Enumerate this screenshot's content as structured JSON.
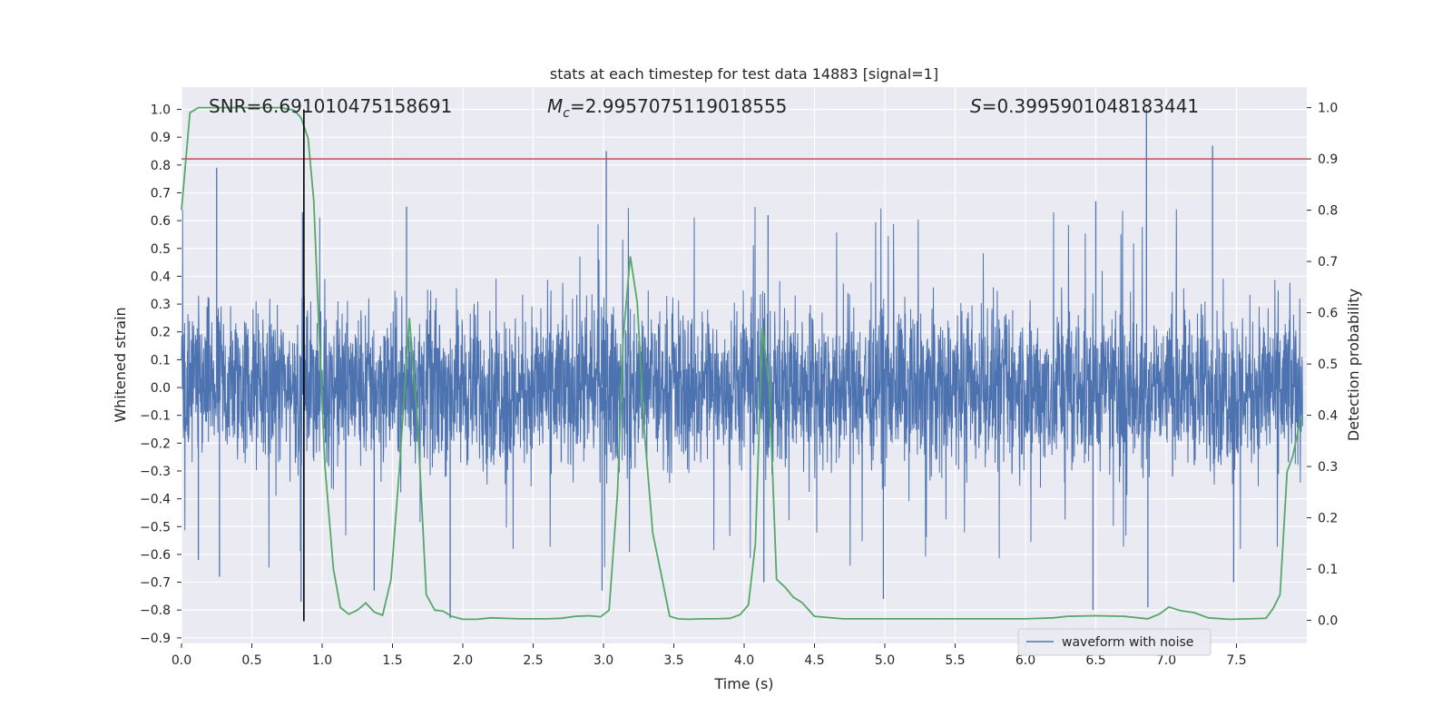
{
  "chart_data": {
    "type": "line",
    "title": "stats at each timestep for test data 14883 [signal=1]",
    "xlabel": "Time (s)",
    "ylabel_left": "Whitened strain",
    "ylabel_right": "Detection probability",
    "xlim": [
      0.0,
      8.0
    ],
    "ylim_left": [
      -0.92,
      1.08
    ],
    "ylim_right": [
      -0.045,
      1.04
    ],
    "x_ticks": [
      0.0,
      0.5,
      1.0,
      1.5,
      2.0,
      2.5,
      3.0,
      3.5,
      4.0,
      4.5,
      5.0,
      5.5,
      6.0,
      6.5,
      7.0,
      7.5
    ],
    "x_tick_labels": [
      "0.0",
      "0.5",
      "1.0",
      "1.5",
      "2.0",
      "2.5",
      "3.0",
      "3.5",
      "4.0",
      "4.5",
      "5.0",
      "5.5",
      "6.0",
      "6.5",
      "7.0",
      "7.5"
    ],
    "y_left_ticks": [
      1.0,
      0.9,
      0.8,
      0.7,
      0.6,
      0.5,
      0.4,
      0.3,
      0.2,
      0.1,
      0.0,
      -0.1,
      -0.2,
      -0.3,
      -0.4,
      -0.5,
      -0.6,
      -0.7,
      -0.8,
      -0.9
    ],
    "y_left_tick_labels": [
      "1.0",
      "0.9",
      "0.8",
      "0.7",
      "0.6",
      "0.5",
      "0.4",
      "0.3",
      "0.2",
      "0.1",
      "0.0",
      "−0.1",
      "−0.2",
      "−0.3",
      "−0.4",
      "−0.5",
      "−0.6",
      "−0.7",
      "−0.8",
      "−0.9"
    ],
    "y_right_ticks": [
      1.0,
      0.9,
      0.8,
      0.7,
      0.6,
      0.5,
      0.4,
      0.3,
      0.2,
      0.1,
      0.0
    ],
    "y_right_tick_labels": [
      "1.0",
      "0.9",
      "0.8",
      "0.7",
      "0.6",
      "0.5",
      "0.4",
      "0.3",
      "0.2",
      "0.1",
      "0.0"
    ],
    "grid": true,
    "legend": {
      "location": "lower right",
      "entries": [
        "waveform with noise"
      ]
    },
    "annotations": {
      "snr_label": "SNR=6.691010475158691",
      "mc_prefix": "M",
      "mc_sub": "c",
      "mc_value": "=2.9957075119018555",
      "s_prefix": "S",
      "s_value": "=0.3995901048183441"
    },
    "threshold_line": {
      "axis": "right",
      "y": 0.9,
      "color": "#c44e52"
    },
    "vertical_marker": {
      "x": 0.87,
      "y_from": -0.84,
      "y_to": 1.0,
      "color": "#000000"
    },
    "series": [
      {
        "name": "waveform with noise",
        "axis": "left",
        "color": "#4c72b0",
        "kind": "noise",
        "sample_count": 4000,
        "typical_range": [
          -0.3,
          0.3
        ],
        "peak_samples": [
          {
            "x": 0.25,
            "y": 0.79
          },
          {
            "x": 0.12,
            "y": -0.62
          },
          {
            "x": 0.27,
            "y": -0.68
          },
          {
            "x": 0.85,
            "y": -0.77
          },
          {
            "x": 0.86,
            "y": 0.63
          },
          {
            "x": 1.37,
            "y": -0.73
          },
          {
            "x": 1.6,
            "y": 0.65
          },
          {
            "x": 1.91,
            "y": -0.83
          },
          {
            "x": 3.02,
            "y": 0.85
          },
          {
            "x": 2.99,
            "y": -0.73
          },
          {
            "x": 4.14,
            "y": -0.7
          },
          {
            "x": 4.17,
            "y": 0.62
          },
          {
            "x": 4.99,
            "y": -0.76
          },
          {
            "x": 6.48,
            "y": -0.8
          },
          {
            "x": 6.5,
            "y": 0.67
          },
          {
            "x": 6.86,
            "y": 1.0
          },
          {
            "x": 6.87,
            "y": -0.79
          },
          {
            "x": 7.33,
            "y": 0.87
          },
          {
            "x": 7.48,
            "y": -0.7
          }
        ]
      },
      {
        "name": "",
        "axis": "right",
        "color": "#55a868",
        "kind": "line",
        "x": [
          0.0,
          0.06,
          0.12,
          0.2,
          0.3,
          0.5,
          0.7,
          0.8,
          0.85,
          0.9,
          0.94,
          0.98,
          1.02,
          1.08,
          1.13,
          1.19,
          1.25,
          1.31,
          1.37,
          1.43,
          1.49,
          1.55,
          1.62,
          1.68,
          1.74,
          1.8,
          1.86,
          1.92,
          2.0,
          2.1,
          2.2,
          2.4,
          2.6,
          2.7,
          2.8,
          2.9,
          2.98,
          3.04,
          3.1,
          3.14,
          3.19,
          3.24,
          3.29,
          3.35,
          3.41,
          3.47,
          3.53,
          3.6,
          3.7,
          3.8,
          3.9,
          3.97,
          4.03,
          4.08,
          4.13,
          4.18,
          4.23,
          4.29,
          4.35,
          4.41,
          4.5,
          4.7,
          5.0,
          5.5,
          6.0,
          6.2,
          6.3,
          6.5,
          6.7,
          6.87,
          6.95,
          7.02,
          7.1,
          7.2,
          7.3,
          7.45,
          7.6,
          7.71,
          7.76,
          7.81,
          7.86,
          7.9,
          7.96
        ],
        "y": [
          0.8,
          0.99,
          1.0,
          1.0,
          1.0,
          1.0,
          1.0,
          0.995,
          0.98,
          0.94,
          0.82,
          0.55,
          0.3,
          0.1,
          0.025,
          0.012,
          0.02,
          0.034,
          0.016,
          0.01,
          0.08,
          0.3,
          0.59,
          0.38,
          0.05,
          0.02,
          0.018,
          0.008,
          0.002,
          0.002,
          0.005,
          0.003,
          0.003,
          0.004,
          0.008,
          0.009,
          0.007,
          0.02,
          0.25,
          0.55,
          0.71,
          0.62,
          0.37,
          0.17,
          0.09,
          0.008,
          0.003,
          0.002,
          0.003,
          0.003,
          0.004,
          0.011,
          0.03,
          0.15,
          0.57,
          0.45,
          0.08,
          0.065,
          0.045,
          0.035,
          0.008,
          0.003,
          0.003,
          0.003,
          0.003,
          0.005,
          0.008,
          0.009,
          0.008,
          0.003,
          0.012,
          0.026,
          0.019,
          0.015,
          0.005,
          0.002,
          0.003,
          0.004,
          0.023,
          0.05,
          0.29,
          0.32,
          0.4
        ]
      }
    ]
  }
}
